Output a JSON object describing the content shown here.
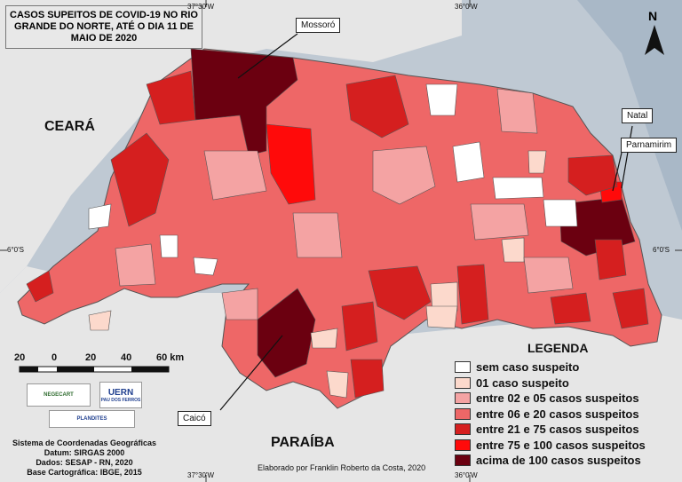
{
  "title": "CASOS SUPEITOS DE COVID-19 NO RIO GRANDE DO NORTE, ATÉ O DIA 11 DE MAIO DE 2020",
  "coordinates": {
    "top_left": "37°30'W",
    "top_right": "36°0'W",
    "bottom_left": "37°30'W",
    "bottom_right": "36°0'W",
    "left": "6°0'S",
    "right": "6°0'S"
  },
  "states": {
    "ceara": "CEARÁ",
    "paraiba": "PARAÍBA"
  },
  "callouts": {
    "mossoro": "Mossoró",
    "natal": "Natal",
    "parnamirim": "Parnamirim",
    "caico": "Caicó"
  },
  "north_arrow": "N",
  "legend": {
    "title": "LEGENDA",
    "items": [
      {
        "label": "sem caso suspeito",
        "color": "#ffffff"
      },
      {
        "label": "01 caso suspeito",
        "color": "#fcd9cc"
      },
      {
        "label": "entre 02 e 05 casos suspeitos",
        "color": "#f4a3a3"
      },
      {
        "label": "entre 06 e 20 casos suspeitos",
        "color": "#ee6767"
      },
      {
        "label": "entre 21 e 75 casos suspeitos",
        "color": "#d51f1f"
      },
      {
        "label": "entre 75 e 100 casos suspeitos",
        "color": "#ff0a0a"
      },
      {
        "label": "acima de 100 casos suspeitos",
        "color": "#6b0010"
      }
    ]
  },
  "scale_bar": {
    "labels": [
      "20",
      "0",
      "20",
      "40",
      "60 km"
    ]
  },
  "logos": {
    "negecart": "NEGECART",
    "uern": "UERN",
    "uern_sub": "PAU DOS FERROS",
    "plandites": "PLANDITES"
  },
  "metadata": {
    "line1": "Sistema de Coordenadas Geográficas",
    "line2": "Datum: SIRGAS 2000",
    "line3": "Dados: SESAP - RN, 2020",
    "line4": "Base Cartográfica: IBGE, 2015"
  },
  "credit": "Elaborado por Franklin Roberto da Costa, 2020",
  "colors": {
    "land": "#e6e6e6",
    "sea": "#bfc9d3",
    "border": "#555555"
  }
}
